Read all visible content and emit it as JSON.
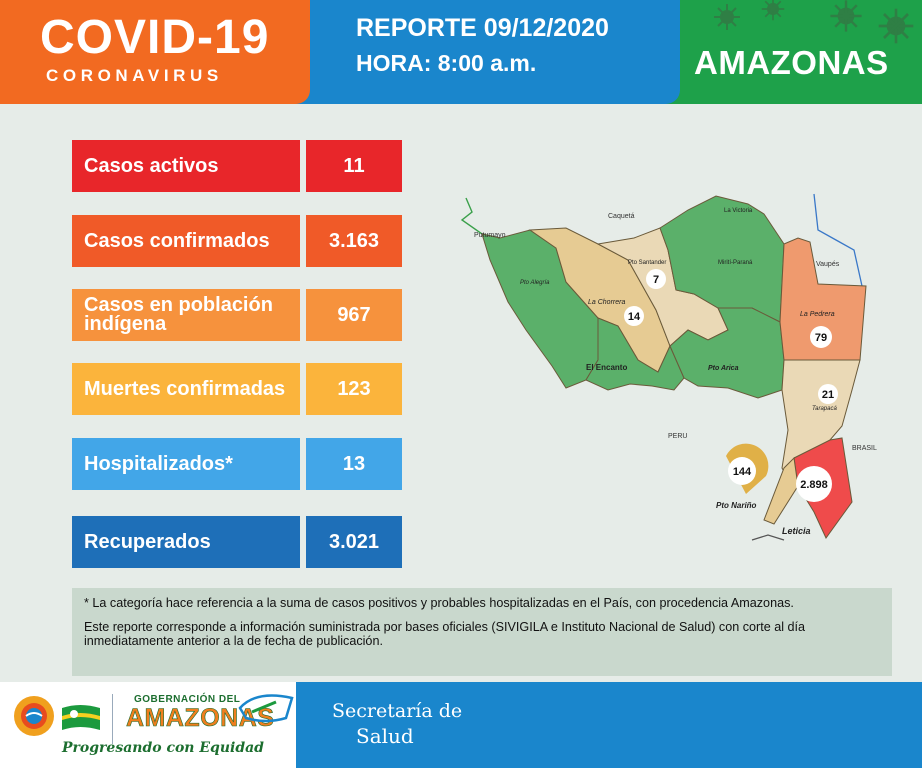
{
  "header": {
    "title": "COVID-19",
    "subtitle": "CORONAVIRUS",
    "report_date": "REPORTE 09/12/2020",
    "report_hour": "HORA: 8:00 a.m.",
    "region": "AMAZONAS"
  },
  "stats": [
    {
      "label": "Casos activos",
      "value": "11",
      "label_color": "#e8262a",
      "value_color": "#e8262a"
    },
    {
      "label": "Casos confirmados",
      "value": "3.163",
      "label_color": "#f05a28",
      "value_color": "#f05a28"
    },
    {
      "label": "Casos en población indígena",
      "value": "967",
      "label_color": "#f6923d",
      "value_color": "#f6923d"
    },
    {
      "label": "Muertes confirmadas",
      "value": "123",
      "label_color": "#fbb43c",
      "value_color": "#fbb43c"
    },
    {
      "label": "Hospitalizados*",
      "value": "13",
      "label_color": "#42a6e8",
      "value_color": "#42a6e8"
    },
    {
      "label": "Recuperados",
      "value": "3.021",
      "label_color": "#1e6fb8",
      "value_color": "#1e6fb8"
    }
  ],
  "map": {
    "neighbors": {
      "caqueta": "Caquetá",
      "putumayo": "Putumayo",
      "vaupes": "Vaupés",
      "peru": "PERU",
      "brasil": "BRASIL"
    },
    "municipalities": {
      "la_victoria": "La Victoria",
      "pto_santander": "Pto Santander",
      "mirití_parana": "Mirití-Paraná",
      "pto_alegria": "Pto Alegría",
      "la_chorrera": "La Chorrera",
      "la_pedrera": "La Pedrera",
      "el_encanto": "El Encanto",
      "pto_arica": "Pto Arica",
      "tarapaca": "Tarapacá",
      "pto_narino": "Pto Nariño",
      "leticia": "Leticia"
    },
    "counts": {
      "pto_santander": "7",
      "la_chorrera": "14",
      "la_pedrera": "79",
      "tarapaca": "21",
      "pto_narino": "144",
      "leticia": "2.898"
    },
    "colors": {
      "green": "#5bb06a",
      "tan": "#e6cb93",
      "salmon": "#ef9a6e",
      "beige": "#ead9b6",
      "red": "#ef4b4b",
      "gold": "#e0b047"
    }
  },
  "notes": {
    "footnote": "* La categoría hace referencia a la suma de casos positivos y probables hospitalizadas en el País, con procedencia Amazonas.",
    "source": "Este reporte corresponde a información suministrada por bases oficiales (SIVIGILA e Instituto Nacional de Salud) con corte al día inmediatamente anterior a la de fecha de publicación."
  },
  "footer": {
    "gob_top": "GOBERNACIÓN DEL",
    "gob_name": "AMAZONAS",
    "slogan": "Progresando con Equidad",
    "secretaria": "Secretaría de",
    "salud": "Salud"
  }
}
